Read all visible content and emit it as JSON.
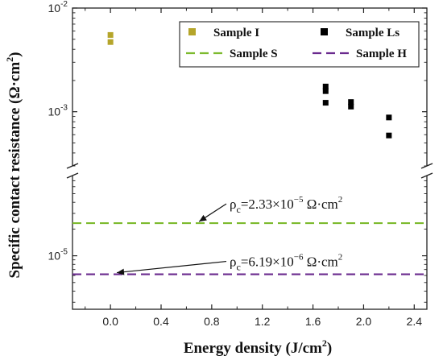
{
  "chart_data": {
    "type": "scatter",
    "xlabel": "Energy density (J/cm²)",
    "ylabel": "Specific contact resistance (Ω·cm²)",
    "xlim": [
      -0.3,
      2.5
    ],
    "x_ticks": [
      0.0,
      0.4,
      0.8,
      1.2,
      1.6,
      2.0,
      2.4
    ],
    "x_tick_labels": [
      "0.0",
      "0.4",
      "0.8",
      "1.2",
      "1.6",
      "2.0",
      "2.4"
    ],
    "y_scale": "log, broken axis",
    "y_segments": [
      {
        "range": [
          0.0003,
          0.01
        ],
        "ticks": [
          {
            "value": 0.01,
            "label_base": "10",
            "label_exp": "-2"
          },
          {
            "value": 0.001,
            "label_base": "10",
            "label_exp": "-3"
          }
        ]
      },
      {
        "range": [
          2.5e-06,
          8e-05
        ],
        "ticks": [
          {
            "value": 1e-05,
            "label_base": "10",
            "label_exp": "-5"
          }
        ]
      }
    ],
    "grid": false,
    "legend_position": "top-right",
    "series": [
      {
        "name": "Sample I",
        "kind": "marker",
        "color": "#b5a52a",
        "x": [
          0.0,
          0.0
        ],
        "y": [
          0.0055,
          0.0047
        ]
      },
      {
        "name": "Sample Ls",
        "kind": "marker",
        "color": "#000000",
        "x": [
          1.7,
          1.7,
          1.7,
          1.9,
          1.9,
          2.2,
          2.2
        ],
        "y": [
          0.00175,
          0.00158,
          0.00122,
          0.00124,
          0.00112,
          0.00088,
          0.00059
        ]
      },
      {
        "name": "Sample S",
        "kind": "hline",
        "color": "#7dba2e",
        "y": 2.33e-05
      },
      {
        "name": "Sample H",
        "kind": "hline",
        "color": "#6a2a8e",
        "y": 6.19e-06
      }
    ],
    "annotations": [
      {
        "base": "ρ",
        "sub": "c",
        "eq": "=2.33×10",
        "exp": "−5",
        "unit": " Ω·cm",
        "unit_exp": "2",
        "arrow_to_x": 0.7,
        "series": "Sample S"
      },
      {
        "base": "ρ",
        "sub": "c",
        "eq": "=6.19×10",
        "exp": "−6",
        "unit": " Ω·cm",
        "unit_exp": "2",
        "arrow_to_x": 0.05,
        "series": "Sample H"
      }
    ]
  }
}
